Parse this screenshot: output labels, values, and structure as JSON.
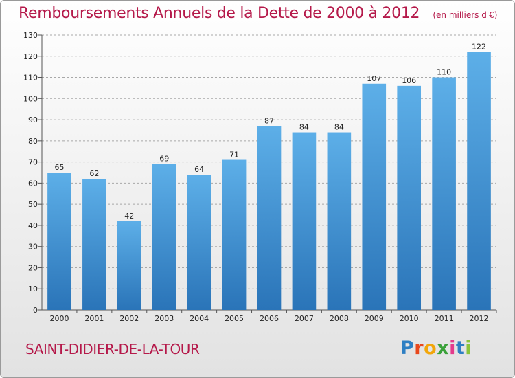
{
  "header": {
    "title": "Remboursements Annuels de la Dette de 2000 à 2012",
    "subtitle": "(en milliers d'€)"
  },
  "footer": {
    "commune": "SAINT-DIDIER-DE-LA-TOUR",
    "brand": "Proxiti",
    "brand_colors": [
      "#2e7fc3",
      "#e8481c",
      "#f2a60a",
      "#3aa13a",
      "#e33b8c",
      "#2e7fc3",
      "#8ac43a"
    ]
  },
  "colors": {
    "bar_top": "#5dafe8",
    "bar_bottom": "#2a74b8",
    "grid": "#a8a8a8",
    "title": "#b5194a"
  },
  "chart_data": {
    "type": "bar",
    "title": "Remboursements Annuels de la Dette de 2000 à 2012",
    "subtitle": "(en milliers d'€)",
    "xlabel": "",
    "ylabel": "",
    "categories": [
      "2000",
      "2001",
      "2002",
      "2003",
      "2004",
      "2005",
      "2006",
      "2007",
      "2008",
      "2009",
      "2010",
      "2011",
      "2012"
    ],
    "values": [
      65,
      62,
      42,
      69,
      64,
      71,
      87,
      84,
      84,
      107,
      106,
      110,
      122
    ],
    "ylim": [
      0,
      130
    ],
    "yticks": [
      0,
      10,
      20,
      30,
      40,
      50,
      60,
      70,
      80,
      90,
      100,
      110,
      120,
      130
    ],
    "grid": "horizontal-dashed",
    "data_labels": true,
    "legend": "none"
  }
}
